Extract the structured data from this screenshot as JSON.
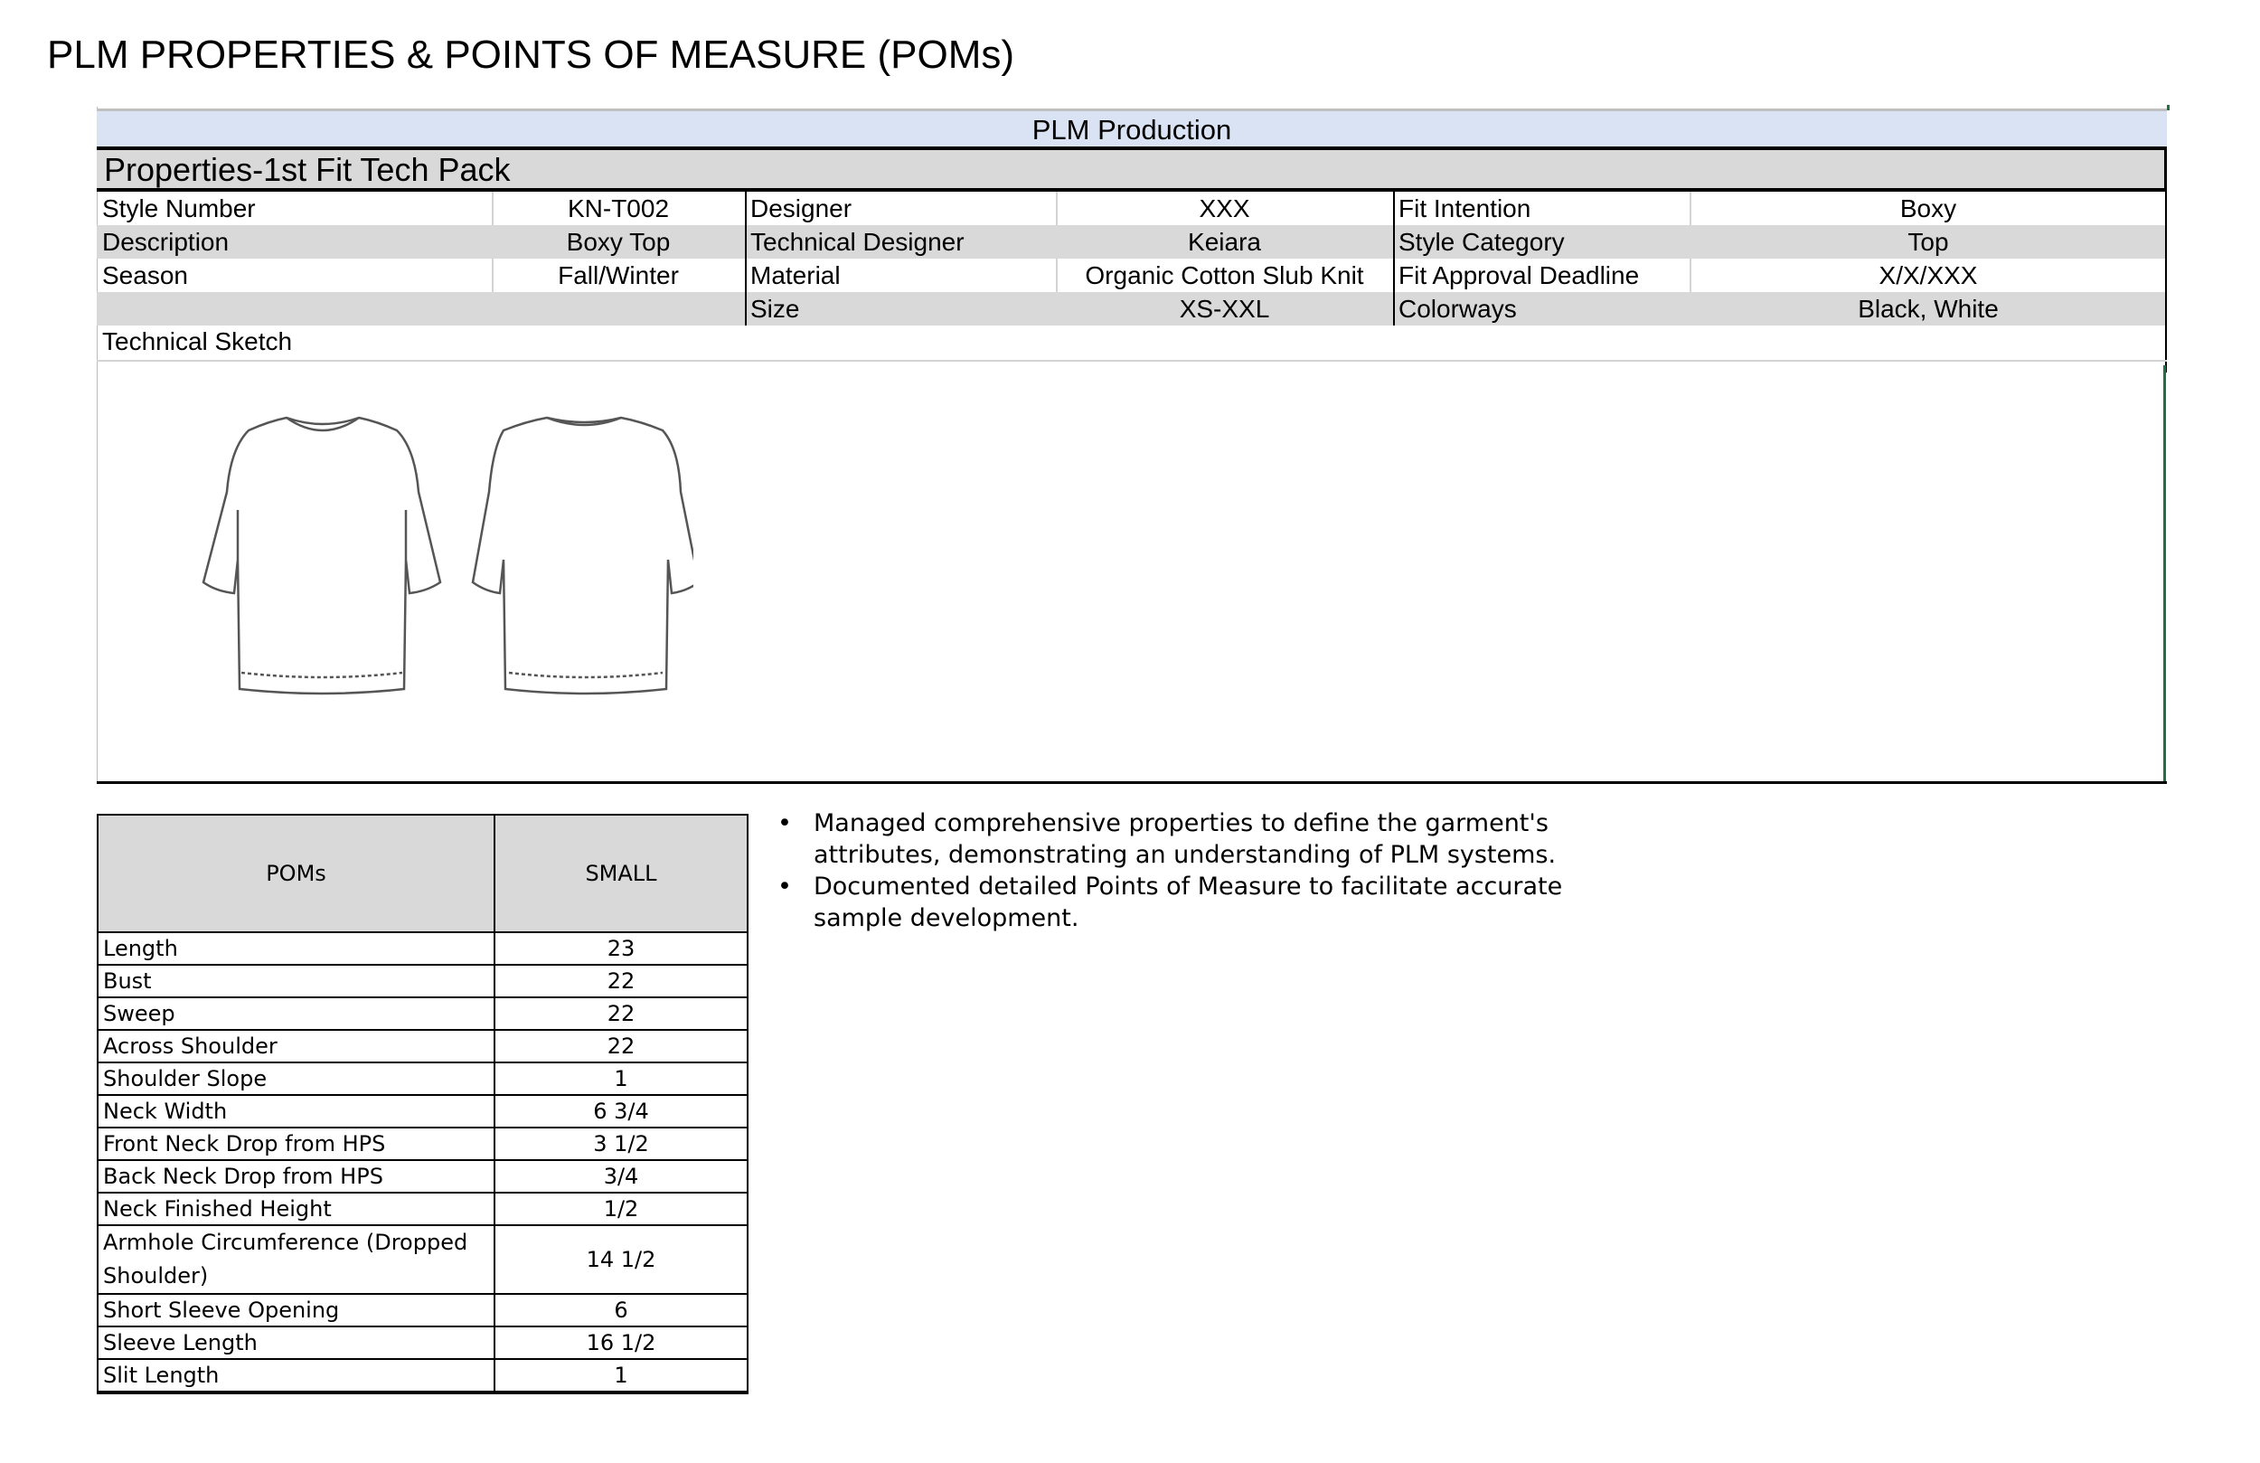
{
  "title": "PLM PROPERTIES & POINTS OF MEASURE (POMs)",
  "sheet": {
    "banner": "PLM Production",
    "section_title": "Properties-1st Fit Tech Pack",
    "rows": [
      {
        "l1": "Style Number",
        "v1": "KN-T002",
        "l2": "Designer",
        "v2": "XXX",
        "l3": "Fit Intention",
        "v3": "Boxy"
      },
      {
        "l1": "Description",
        "v1": "Boxy Top",
        "l2": "Technical Designer",
        "v2": "Keiara",
        "l3": "Style Category",
        "v3": "Top"
      },
      {
        "l1": "Season",
        "v1": "Fall/Winter",
        "l2": "Material",
        "v2": "Organic Cotton Slub Knit",
        "l3": "Fit Approval Deadline",
        "v3": "X/X/XXX"
      },
      {
        "l1": "",
        "v1": "",
        "l2": "Size",
        "v2": "XS-XXL",
        "l3": "Colorways",
        "v3": "Black, White"
      }
    ],
    "sketch_label": "Technical Sketch",
    "sketch_icons": [
      "tshirt-front-sketch",
      "tshirt-back-sketch"
    ]
  },
  "poms": {
    "headers": [
      "POMs",
      "SMALL"
    ],
    "rows": [
      [
        "Length",
        "23"
      ],
      [
        "Bust",
        "22"
      ],
      [
        "Sweep",
        "22"
      ],
      [
        "Across Shoulder",
        "22"
      ],
      [
        "Shoulder Slope",
        "1"
      ],
      [
        "Neck Width",
        "6 3/4"
      ],
      [
        "Front Neck Drop from HPS",
        "3 1/2"
      ],
      [
        "Back Neck Drop from HPS",
        "3/4"
      ],
      [
        "Neck Finished Height",
        "1/2"
      ],
      [
        "Armhole Circumference (Dropped Shoulder)",
        "14 1/2"
      ],
      [
        "Short Sleeve Opening",
        "6"
      ],
      [
        "Sleeve Length",
        "16 1/2"
      ],
      [
        "Slit Length",
        "1"
      ]
    ]
  },
  "notes": [
    "Managed comprehensive properties to define the garment's attributes, demonstrating an understanding of PLM systems.",
    "Documented detailed Points of Measure to facilitate accurate sample development."
  ],
  "colors": {
    "banner": "#dae3f3",
    "header_gray": "#d9d9d9",
    "accent_green": "#1e7145"
  }
}
